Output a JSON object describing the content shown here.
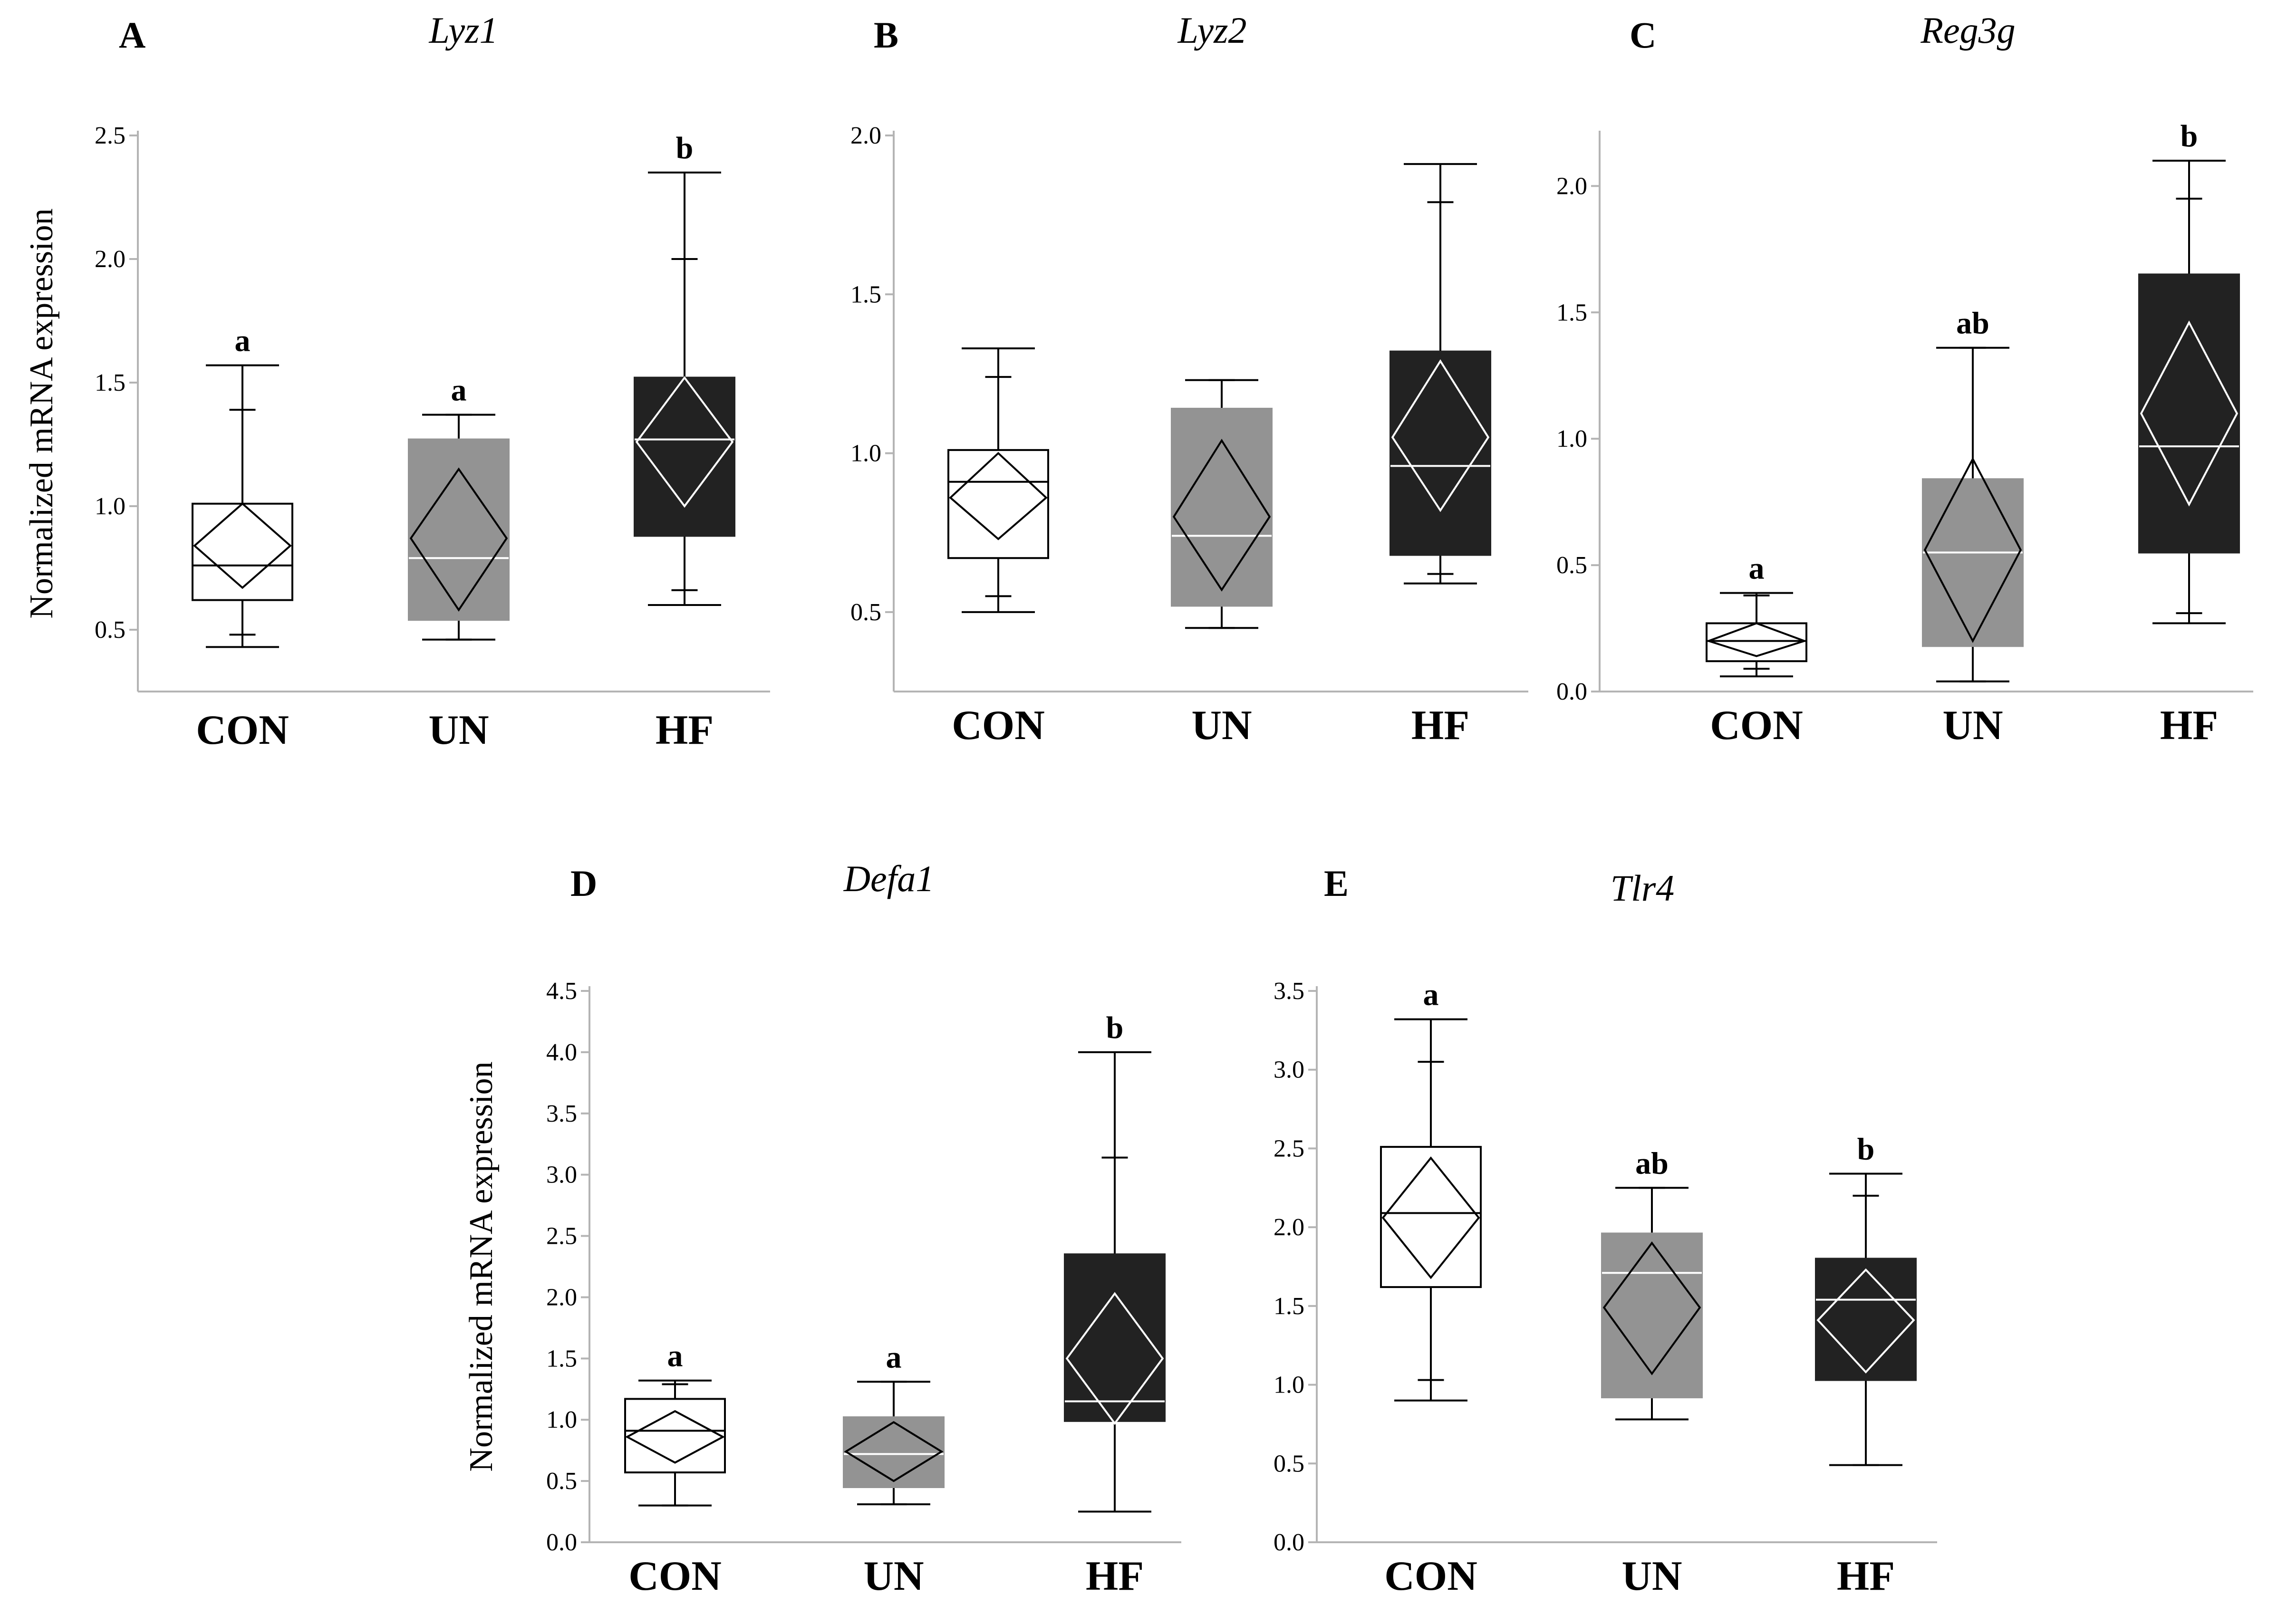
{
  "y_axis_title": "Normalized mRNA expression",
  "colors": {
    "CON": "#ffffff",
    "UN": "#939393",
    "HF": "#222222",
    "axis": "#b4b4b4",
    "stroke": "#000000"
  },
  "chart_data": [
    {
      "type": "box",
      "panel": "A",
      "title": "Lyz1",
      "ylabel": "Normalized mRNA expression",
      "ylim": [
        0.25,
        2.5
      ],
      "yticks": [
        "0.5",
        "1.0",
        "1.5",
        "2.0",
        "2.5"
      ],
      "categories": [
        "CON",
        "UN",
        "HF"
      ],
      "groups": [
        {
          "name": "CON",
          "min": 0.43,
          "p10": 0.48,
          "q1": 0.62,
          "median": 0.76,
          "q3": 1.01,
          "p90": 1.39,
          "max": 1.57,
          "mean": 0.84,
          "ci_low": 0.67,
          "ci_high": 1.01,
          "label": "a"
        },
        {
          "name": "UN",
          "min": 0.46,
          "p10": 0.46,
          "q1": 0.54,
          "median": 0.79,
          "q3": 1.27,
          "p90": 1.37,
          "max": 1.37,
          "mean": 0.87,
          "ci_low": 0.58,
          "ci_high": 1.15,
          "label": "a"
        },
        {
          "name": "HF",
          "min": 0.6,
          "p10": 0.66,
          "q1": 0.88,
          "median": 1.27,
          "q3": 1.52,
          "p90": 2.0,
          "max": 2.35,
          "mean": 1.26,
          "ci_low": 1.0,
          "ci_high": 1.52,
          "label": "b"
        }
      ]
    },
    {
      "type": "box",
      "panel": "B",
      "title": "Lyz2",
      "ylabel": "",
      "ylim": [
        0.25,
        2.0
      ],
      "yticks": [
        "0.5",
        "1.0",
        "1.5",
        "2.0"
      ],
      "categories": [
        "CON",
        "UN",
        "HF"
      ],
      "groups": [
        {
          "name": "CON",
          "min": 0.5,
          "p10": 0.55,
          "q1": 0.67,
          "median": 0.91,
          "q3": 1.01,
          "p90": 1.24,
          "max": 1.33,
          "mean": 0.86,
          "ci_low": 0.73,
          "ci_high": 1.0,
          "label": ""
        },
        {
          "name": "UN",
          "min": 0.45,
          "p10": 0.45,
          "q1": 0.52,
          "median": 0.74,
          "q3": 1.14,
          "p90": 1.23,
          "max": 1.23,
          "mean": 0.8,
          "ci_low": 0.57,
          "ci_high": 1.04,
          "label": ""
        },
        {
          "name": "HF",
          "min": 0.59,
          "p10": 0.62,
          "q1": 0.68,
          "median": 0.96,
          "q3": 1.32,
          "p90": 1.79,
          "max": 1.91,
          "mean": 1.05,
          "ci_low": 0.82,
          "ci_high": 1.29,
          "label": ""
        }
      ]
    },
    {
      "type": "box",
      "panel": "C",
      "title": "Reg3g",
      "ylabel": "",
      "ylim": [
        0.0,
        2.2
      ],
      "yticks": [
        "0.0",
        "0.5",
        "1.0",
        "1.5",
        "2.0"
      ],
      "categories": [
        "CON",
        "UN",
        "HF"
      ],
      "groups": [
        {
          "name": "CON",
          "min": 0.06,
          "p10": 0.09,
          "q1": 0.12,
          "median": 0.2,
          "q3": 0.27,
          "p90": 0.38,
          "max": 0.39,
          "mean": 0.2,
          "ci_low": 0.14,
          "ci_high": 0.27,
          "label": "a"
        },
        {
          "name": "UN",
          "min": 0.04,
          "p10": 0.04,
          "q1": 0.18,
          "median": 0.55,
          "q3": 0.84,
          "p90": 1.36,
          "max": 1.36,
          "mean": 0.56,
          "ci_low": 0.2,
          "ci_high": 0.92,
          "label": "ab"
        },
        {
          "name": "HF",
          "min": 0.27,
          "p10": 0.31,
          "q1": 0.55,
          "median": 0.97,
          "q3": 1.65,
          "p90": 1.95,
          "max": 2.1,
          "mean": 1.1,
          "ci_low": 0.74,
          "ci_high": 1.46,
          "label": "b"
        }
      ]
    },
    {
      "type": "box",
      "panel": "D",
      "title": "Defa1",
      "ylabel": "Normalized mRNA expression",
      "ylim": [
        0.0,
        4.5
      ],
      "yticks": [
        "0.0",
        "0.5",
        "1.0",
        "1.5",
        "2.0",
        "2.5",
        "3.0",
        "3.5",
        "4.0",
        "4.5"
      ],
      "categories": [
        "CON",
        "UN",
        "HF"
      ],
      "groups": [
        {
          "name": "CON",
          "min": 0.3,
          "p10": 0.3,
          "q1": 0.57,
          "median": 0.91,
          "q3": 1.17,
          "p90": 1.29,
          "max": 1.32,
          "mean": 0.86,
          "ci_low": 0.65,
          "ci_high": 1.07,
          "label": "a"
        },
        {
          "name": "UN",
          "min": 0.31,
          "p10": 0.31,
          "q1": 0.45,
          "median": 0.72,
          "q3": 1.02,
          "p90": 1.31,
          "max": 1.31,
          "mean": 0.74,
          "ci_low": 0.5,
          "ci_high": 0.98,
          "label": "a"
        },
        {
          "name": "HF",
          "min": 0.25,
          "p10": 0.25,
          "q1": 0.99,
          "median": 1.15,
          "q3": 2.35,
          "p90": 3.14,
          "max": 4.0,
          "mean": 1.5,
          "ci_low": 0.97,
          "ci_high": 2.03,
          "label": "b"
        }
      ]
    },
    {
      "type": "box",
      "panel": "E",
      "title": "Tlr4",
      "ylabel": "",
      "ylim": [
        0.0,
        3.5
      ],
      "yticks": [
        "0.0",
        "0.5",
        "1.0",
        "1.5",
        "2.0",
        "2.5",
        "3.0",
        "3.5"
      ],
      "categories": [
        "CON",
        "UN",
        "HF"
      ],
      "groups": [
        {
          "name": "CON",
          "min": 0.9,
          "p10": 1.03,
          "q1": 1.62,
          "median": 2.09,
          "q3": 2.51,
          "p90": 3.05,
          "max": 3.32,
          "mean": 2.06,
          "ci_low": 1.68,
          "ci_high": 2.44,
          "label": "a"
        },
        {
          "name": "UN",
          "min": 0.78,
          "p10": 0.78,
          "q1": 0.92,
          "median": 1.71,
          "q3": 1.96,
          "p90": 2.25,
          "max": 2.25,
          "mean": 1.49,
          "ci_low": 1.07,
          "ci_high": 1.9,
          "label": "ab"
        },
        {
          "name": "HF",
          "min": 0.49,
          "p10": 0.49,
          "q1": 1.03,
          "median": 1.54,
          "q3": 1.8,
          "p90": 2.2,
          "max": 2.34,
          "mean": 1.41,
          "ci_low": 1.08,
          "ci_high": 1.73,
          "label": "b"
        }
      ]
    }
  ]
}
